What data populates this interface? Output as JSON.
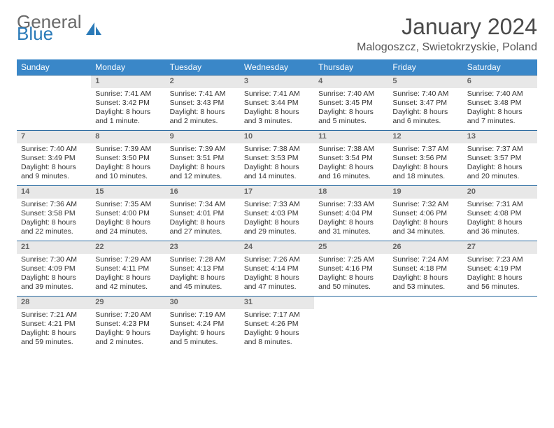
{
  "logo": {
    "text_top": "General",
    "text_bottom": "Blue"
  },
  "title": "January 2024",
  "location": "Malogoszcz, Swietokrzyskie, Poland",
  "colors": {
    "header_bg": "#3a87c8",
    "header_text": "#ffffff",
    "daynum_bg": "#e8e8e8",
    "daynum_text": "#666666",
    "week_border": "#2a6aa0",
    "logo_gray": "#6a6a6a",
    "logo_blue": "#2a7ab8"
  },
  "typography": {
    "title_fontsize": 32,
    "location_fontsize": 16,
    "dayheader_fontsize": 12,
    "cell_fontsize": 10.5
  },
  "day_names": [
    "Sunday",
    "Monday",
    "Tuesday",
    "Wednesday",
    "Thursday",
    "Friday",
    "Saturday"
  ],
  "weeks": [
    [
      {
        "n": "",
        "sr": "",
        "ss": "",
        "dl": ""
      },
      {
        "n": "1",
        "sr": "Sunrise: 7:41 AM",
        "ss": "Sunset: 3:42 PM",
        "dl": "Daylight: 8 hours and 1 minute."
      },
      {
        "n": "2",
        "sr": "Sunrise: 7:41 AM",
        "ss": "Sunset: 3:43 PM",
        "dl": "Daylight: 8 hours and 2 minutes."
      },
      {
        "n": "3",
        "sr": "Sunrise: 7:41 AM",
        "ss": "Sunset: 3:44 PM",
        "dl": "Daylight: 8 hours and 3 minutes."
      },
      {
        "n": "4",
        "sr": "Sunrise: 7:40 AM",
        "ss": "Sunset: 3:45 PM",
        "dl": "Daylight: 8 hours and 5 minutes."
      },
      {
        "n": "5",
        "sr": "Sunrise: 7:40 AM",
        "ss": "Sunset: 3:47 PM",
        "dl": "Daylight: 8 hours and 6 minutes."
      },
      {
        "n": "6",
        "sr": "Sunrise: 7:40 AM",
        "ss": "Sunset: 3:48 PM",
        "dl": "Daylight: 8 hours and 7 minutes."
      }
    ],
    [
      {
        "n": "7",
        "sr": "Sunrise: 7:40 AM",
        "ss": "Sunset: 3:49 PM",
        "dl": "Daylight: 8 hours and 9 minutes."
      },
      {
        "n": "8",
        "sr": "Sunrise: 7:39 AM",
        "ss": "Sunset: 3:50 PM",
        "dl": "Daylight: 8 hours and 10 minutes."
      },
      {
        "n": "9",
        "sr": "Sunrise: 7:39 AM",
        "ss": "Sunset: 3:51 PM",
        "dl": "Daylight: 8 hours and 12 minutes."
      },
      {
        "n": "10",
        "sr": "Sunrise: 7:38 AM",
        "ss": "Sunset: 3:53 PM",
        "dl": "Daylight: 8 hours and 14 minutes."
      },
      {
        "n": "11",
        "sr": "Sunrise: 7:38 AM",
        "ss": "Sunset: 3:54 PM",
        "dl": "Daylight: 8 hours and 16 minutes."
      },
      {
        "n": "12",
        "sr": "Sunrise: 7:37 AM",
        "ss": "Sunset: 3:56 PM",
        "dl": "Daylight: 8 hours and 18 minutes."
      },
      {
        "n": "13",
        "sr": "Sunrise: 7:37 AM",
        "ss": "Sunset: 3:57 PM",
        "dl": "Daylight: 8 hours and 20 minutes."
      }
    ],
    [
      {
        "n": "14",
        "sr": "Sunrise: 7:36 AM",
        "ss": "Sunset: 3:58 PM",
        "dl": "Daylight: 8 hours and 22 minutes."
      },
      {
        "n": "15",
        "sr": "Sunrise: 7:35 AM",
        "ss": "Sunset: 4:00 PM",
        "dl": "Daylight: 8 hours and 24 minutes."
      },
      {
        "n": "16",
        "sr": "Sunrise: 7:34 AM",
        "ss": "Sunset: 4:01 PM",
        "dl": "Daylight: 8 hours and 27 minutes."
      },
      {
        "n": "17",
        "sr": "Sunrise: 7:33 AM",
        "ss": "Sunset: 4:03 PM",
        "dl": "Daylight: 8 hours and 29 minutes."
      },
      {
        "n": "18",
        "sr": "Sunrise: 7:33 AM",
        "ss": "Sunset: 4:04 PM",
        "dl": "Daylight: 8 hours and 31 minutes."
      },
      {
        "n": "19",
        "sr": "Sunrise: 7:32 AM",
        "ss": "Sunset: 4:06 PM",
        "dl": "Daylight: 8 hours and 34 minutes."
      },
      {
        "n": "20",
        "sr": "Sunrise: 7:31 AM",
        "ss": "Sunset: 4:08 PM",
        "dl": "Daylight: 8 hours and 36 minutes."
      }
    ],
    [
      {
        "n": "21",
        "sr": "Sunrise: 7:30 AM",
        "ss": "Sunset: 4:09 PM",
        "dl": "Daylight: 8 hours and 39 minutes."
      },
      {
        "n": "22",
        "sr": "Sunrise: 7:29 AM",
        "ss": "Sunset: 4:11 PM",
        "dl": "Daylight: 8 hours and 42 minutes."
      },
      {
        "n": "23",
        "sr": "Sunrise: 7:28 AM",
        "ss": "Sunset: 4:13 PM",
        "dl": "Daylight: 8 hours and 45 minutes."
      },
      {
        "n": "24",
        "sr": "Sunrise: 7:26 AM",
        "ss": "Sunset: 4:14 PM",
        "dl": "Daylight: 8 hours and 47 minutes."
      },
      {
        "n": "25",
        "sr": "Sunrise: 7:25 AM",
        "ss": "Sunset: 4:16 PM",
        "dl": "Daylight: 8 hours and 50 minutes."
      },
      {
        "n": "26",
        "sr": "Sunrise: 7:24 AM",
        "ss": "Sunset: 4:18 PM",
        "dl": "Daylight: 8 hours and 53 minutes."
      },
      {
        "n": "27",
        "sr": "Sunrise: 7:23 AM",
        "ss": "Sunset: 4:19 PM",
        "dl": "Daylight: 8 hours and 56 minutes."
      }
    ],
    [
      {
        "n": "28",
        "sr": "Sunrise: 7:21 AM",
        "ss": "Sunset: 4:21 PM",
        "dl": "Daylight: 8 hours and 59 minutes."
      },
      {
        "n": "29",
        "sr": "Sunrise: 7:20 AM",
        "ss": "Sunset: 4:23 PM",
        "dl": "Daylight: 9 hours and 2 minutes."
      },
      {
        "n": "30",
        "sr": "Sunrise: 7:19 AM",
        "ss": "Sunset: 4:24 PM",
        "dl": "Daylight: 9 hours and 5 minutes."
      },
      {
        "n": "31",
        "sr": "Sunrise: 7:17 AM",
        "ss": "Sunset: 4:26 PM",
        "dl": "Daylight: 9 hours and 8 minutes."
      },
      {
        "n": "",
        "sr": "",
        "ss": "",
        "dl": ""
      },
      {
        "n": "",
        "sr": "",
        "ss": "",
        "dl": ""
      },
      {
        "n": "",
        "sr": "",
        "ss": "",
        "dl": ""
      }
    ]
  ]
}
